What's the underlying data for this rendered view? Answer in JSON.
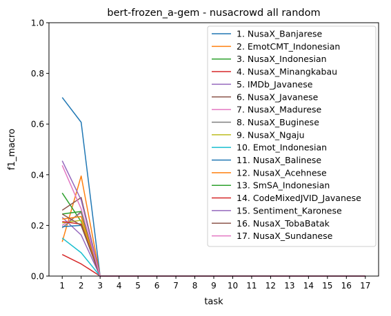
{
  "chart_data": {
    "type": "line",
    "title": "bert-frozen_a-gem - nusacrowd all random",
    "xlabel": "task",
    "ylabel": "f1_macro",
    "x": [
      1,
      2,
      3,
      4,
      5,
      6,
      7,
      8,
      9,
      10,
      11,
      12,
      13,
      14,
      15,
      16,
      17
    ],
    "xlim": [
      0.3,
      17.7
    ],
    "ylim": [
      0,
      1
    ],
    "yticks": [
      0.0,
      0.2,
      0.4,
      0.6,
      0.8,
      1.0
    ],
    "ytick_labels": [
      "0.0",
      "0.2",
      "0.4",
      "0.6",
      "0.8",
      "1.0"
    ],
    "xtick_labels": [
      "1",
      "2",
      "3",
      "4",
      "5",
      "6",
      "7",
      "8",
      "9",
      "10",
      "11",
      "12",
      "13",
      "14",
      "15",
      "16",
      "17"
    ],
    "grid": false,
    "legend_position": "upper-right",
    "series": [
      {
        "name": "1. NusaX_Banjarese",
        "color": "#1f77b4",
        "values": [
          0.705,
          0.607,
          0,
          0,
          0,
          0,
          0,
          0,
          0,
          0,
          0,
          0,
          0,
          0,
          0,
          0,
          0
        ]
      },
      {
        "name": "2. EmotCMT_Indonesian",
        "color": "#ff7f0e",
        "values": [
          0.135,
          0.395,
          0,
          0,
          0,
          0,
          0,
          0,
          0,
          0,
          0,
          0,
          0,
          0,
          0,
          0,
          0
        ]
      },
      {
        "name": "3. NusaX_Indonesian",
        "color": "#2ca02c",
        "values": [
          0.328,
          0.215,
          0,
          0,
          0,
          0,
          0,
          0,
          0,
          0,
          0,
          0,
          0,
          0,
          0,
          0,
          0
        ]
      },
      {
        "name": "4. NusaX_Minangkabau",
        "color": "#d62728",
        "values": [
          0.085,
          0.048,
          0,
          0,
          0,
          0,
          0,
          0,
          0,
          0,
          0,
          0,
          0,
          0,
          0,
          0,
          0
        ]
      },
      {
        "name": "5. IMDb_Javanese",
        "color": "#9467bd",
        "values": [
          0.232,
          0.162,
          0,
          0,
          0,
          0,
          0,
          0,
          0,
          0,
          0,
          0,
          0,
          0,
          0,
          0,
          0
        ]
      },
      {
        "name": "6. NusaX_Javanese",
        "color": "#8c564b",
        "values": [
          0.26,
          0.31,
          0,
          0,
          0,
          0,
          0,
          0,
          0,
          0,
          0,
          0,
          0,
          0,
          0,
          0,
          0
        ]
      },
      {
        "name": "7. NusaX_Madurese",
        "color": "#e377c2",
        "values": [
          0.2,
          0.25,
          0,
          0,
          0,
          0,
          0,
          0,
          0,
          0,
          0,
          0,
          0,
          0,
          0,
          0,
          0
        ]
      },
      {
        "name": "8. NusaX_Buginese",
        "color": "#7f7f7f",
        "values": [
          0.19,
          0.255,
          0,
          0,
          0,
          0,
          0,
          0,
          0,
          0,
          0,
          0,
          0,
          0,
          0,
          0,
          0
        ]
      },
      {
        "name": "9. NusaX_Ngaju",
        "color": "#bcbd22",
        "values": [
          0.21,
          0.22,
          0,
          0,
          0,
          0,
          0,
          0,
          0,
          0,
          0,
          0,
          0,
          0,
          0,
          0,
          0
        ]
      },
      {
        "name": "10. Emot_Indonesian",
        "color": "#17becf",
        "values": [
          0.15,
          0.092,
          0,
          0,
          0,
          0,
          0,
          0,
          0,
          0,
          0,
          0,
          0,
          0,
          0,
          0,
          0
        ]
      },
      {
        "name": "11. NusaX_Balinese",
        "color": "#1f77b4",
        "values": [
          0.195,
          0.2,
          0,
          0,
          0,
          0,
          0,
          0,
          0,
          0,
          0,
          0,
          0,
          0,
          0,
          0,
          0
        ]
      },
      {
        "name": "12. NusaX_Acehnese",
        "color": "#ff7f0e",
        "values": [
          0.225,
          0.235,
          0,
          0,
          0,
          0,
          0,
          0,
          0,
          0,
          0,
          0,
          0,
          0,
          0,
          0,
          0
        ]
      },
      {
        "name": "13. SmSA_Indonesian",
        "color": "#2ca02c",
        "values": [
          0.245,
          0.255,
          0,
          0,
          0,
          0,
          0,
          0,
          0,
          0,
          0,
          0,
          0,
          0,
          0,
          0,
          0
        ]
      },
      {
        "name": "14. CodeMixedJVID_Javanese",
        "color": "#d62728",
        "values": [
          0.215,
          0.205,
          0,
          0,
          0,
          0,
          0,
          0,
          0,
          0,
          0,
          0,
          0,
          0,
          0,
          0,
          0
        ]
      },
      {
        "name": "15. Sentiment_Karonese",
        "color": "#9467bd",
        "values": [
          0.455,
          0.3,
          0,
          0,
          0,
          0,
          0,
          0,
          0,
          0,
          0,
          0,
          0,
          0,
          0,
          0,
          0
        ]
      },
      {
        "name": "16. NusaX_TobaBatak",
        "color": "#8c564b",
        "values": [
          0.245,
          0.2,
          0,
          0,
          0,
          0,
          0,
          0,
          0,
          0,
          0,
          0,
          0,
          0,
          0,
          0,
          0
        ]
      },
      {
        "name": "17. NusaX_Sundanese",
        "color": "#e377c2",
        "values": [
          0.437,
          0.265,
          0,
          0,
          0,
          0,
          0,
          0,
          0,
          0,
          0,
          0,
          0,
          0,
          0,
          0,
          0
        ]
      }
    ]
  }
}
